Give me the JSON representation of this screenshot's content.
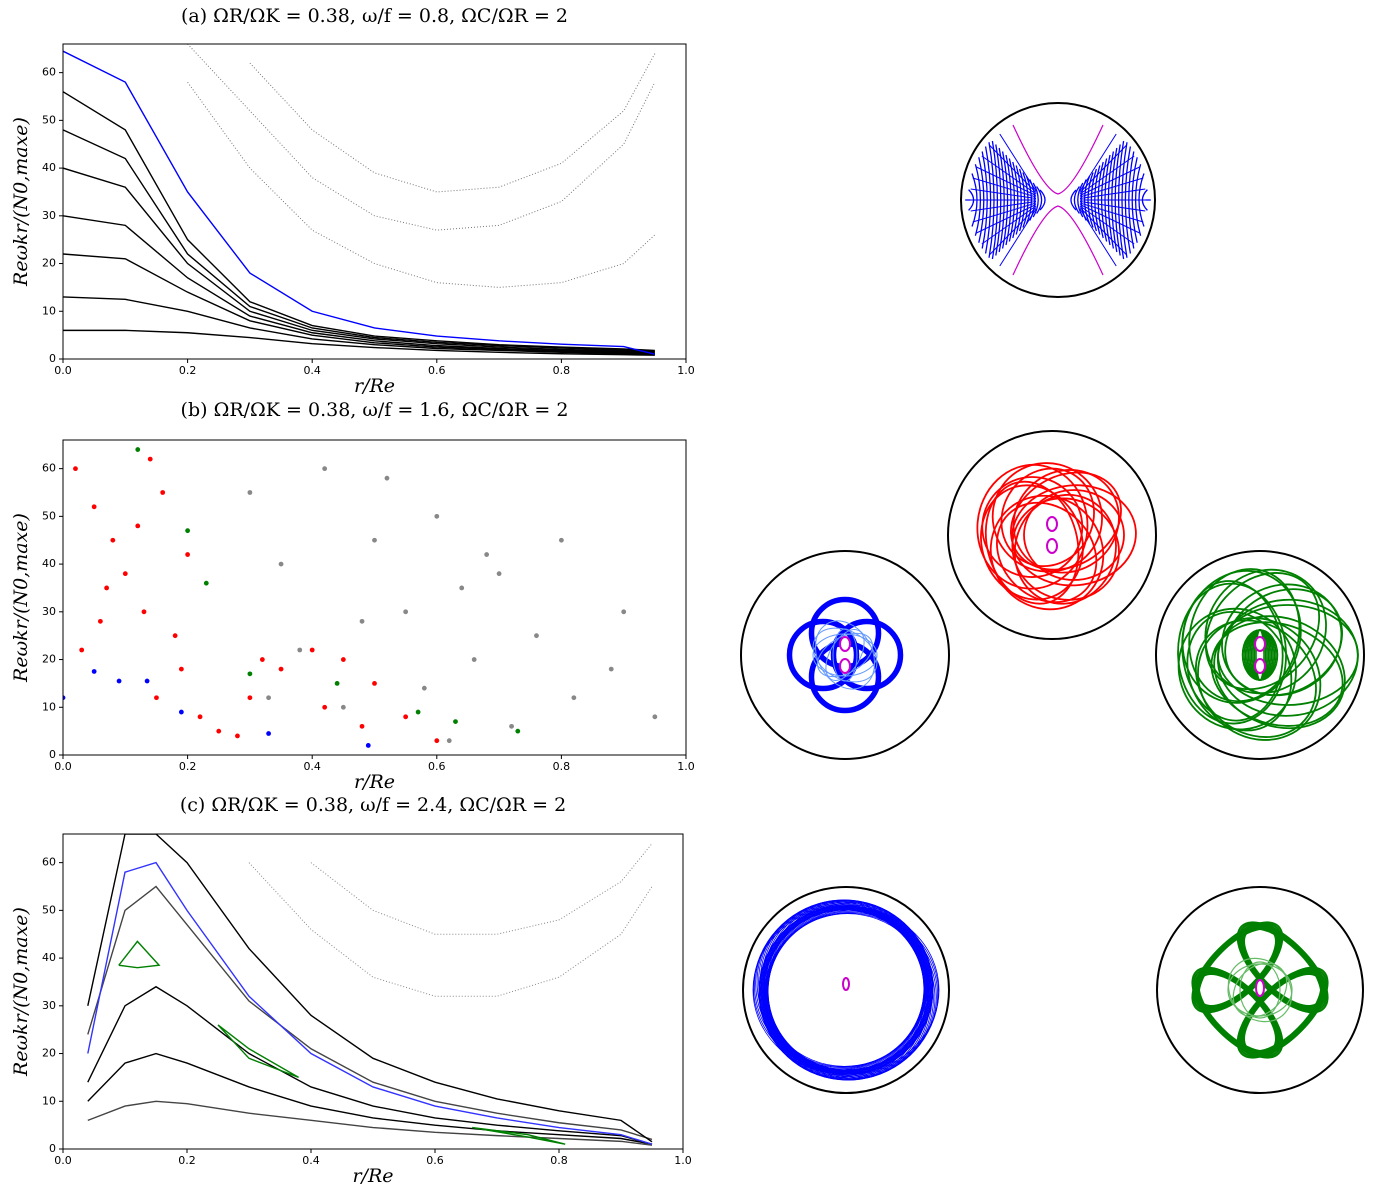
{
  "chart_data": [
    {
      "type": "line",
      "title": "(a)   ΩR/ΩK = 0.38,  ω/f = 0.8,  ΩC/ΩR = 2",
      "x_label": "r/Re",
      "y_label": "Reωkr/(N0,maxe)",
      "xlim": [
        0,
        1
      ],
      "ylim": [
        0,
        66
      ],
      "xticks": [
        {
          "value": 0,
          "label": "0.0"
        },
        0.2,
        0.4,
        0.6,
        0.8,
        {
          "value": 1,
          "label": "1.0"
        }
      ],
      "yticks": [
        0,
        10,
        20,
        30,
        40,
        50,
        60
      ],
      "x": [
        0,
        0.1,
        0.2,
        0.3,
        0.4,
        0.5,
        0.6,
        0.7,
        0.8,
        0.9,
        0.95
      ],
      "series": [
        {
          "color": "#000000",
          "values": [
            56,
            48,
            25,
            12,
            7,
            4.8,
            3.8,
            3.0,
            2.5,
            2.1,
            1.8
          ]
        },
        {
          "color": "#000000",
          "values": [
            48,
            42,
            22,
            11,
            6.5,
            4.5,
            3.5,
            2.8,
            2.3,
            1.9,
            1.6
          ]
        },
        {
          "color": "#000000",
          "values": [
            40,
            36,
            20,
            10,
            6,
            4.2,
            3.2,
            2.5,
            2.0,
            1.7,
            1.5
          ]
        },
        {
          "color": "#000000",
          "values": [
            30,
            28,
            17,
            9,
            5.5,
            3.8,
            2.8,
            2.2,
            1.8,
            1.5,
            1.3
          ]
        },
        {
          "color": "#000000",
          "values": [
            22,
            21,
            14,
            8,
            5,
            3.4,
            2.5,
            2,
            1.6,
            1.3,
            1.1
          ]
        },
        {
          "color": "#000000",
          "values": [
            13,
            12.5,
            10,
            6.5,
            4.2,
            3,
            2.2,
            1.8,
            1.4,
            1.1,
            1
          ]
        },
        {
          "color": "#000000",
          "values": [
            6,
            6,
            5.5,
            4.5,
            3.2,
            2.4,
            1.8,
            1.4,
            1.1,
            0.9,
            0.8
          ]
        },
        {
          "color": "#777777",
          "values": [
            null,
            null,
            66,
            52,
            38,
            30,
            27,
            28,
            33,
            45,
            58
          ]
        },
        {
          "color": "#777777",
          "values": [
            null,
            null,
            null,
            62,
            48,
            39,
            35,
            36,
            41,
            52,
            64
          ]
        },
        {
          "color": "#777777",
          "values": [
            null,
            null,
            58,
            40,
            27,
            20,
            16,
            15,
            16,
            20,
            26
          ]
        },
        {
          "color": "#0000ff",
          "values": [
            64.5,
            58,
            35,
            18,
            10,
            6.5,
            4.8,
            3.8,
            3.1,
            2.6,
            1
          ]
        }
      ]
    },
    {
      "type": "scatter",
      "title": "(b)   ΩR/ΩK = 0.38,  ω/f = 1.6,  ΩC/ΩR = 2",
      "x_label": "r/Re",
      "y_label": "Reωkr/(N0,maxe)",
      "xlim": [
        0,
        1
      ],
      "ylim": [
        0,
        66
      ],
      "xticks": [
        {
          "value": 0,
          "label": "0.0"
        },
        0.2,
        0.4,
        0.6,
        0.8,
        {
          "value": 1,
          "label": "1.0"
        }
      ],
      "yticks": [
        0,
        10,
        20,
        30,
        40,
        50,
        60
      ],
      "series": [
        {
          "color": "#888888",
          "x": [
            0.3,
            0.35,
            0.42,
            0.5,
            0.55,
            0.6,
            0.66,
            0.7,
            0.76,
            0.82,
            0.9,
            0.95,
            0.38,
            0.45,
            0.58,
            0.64,
            0.72,
            0.8,
            0.33,
            0.52,
            0.62,
            0.48,
            0.68,
            0.88
          ],
          "values": [
            55,
            40,
            60,
            45,
            30,
            50,
            20,
            38,
            25,
            12,
            30,
            8,
            22,
            10,
            14,
            35,
            6,
            45,
            12,
            58,
            3,
            28,
            42,
            18
          ]
        },
        {
          "color": "#ff0000",
          "x": [
            0.02,
            0.05,
            0.08,
            0.1,
            0.13,
            0.16,
            0.18,
            0.2,
            0.03,
            0.07,
            0.12,
            0.15,
            0.19,
            0.22,
            0.25,
            0.3,
            0.35,
            0.4,
            0.45,
            0.5,
            0.55,
            0.6,
            0.42,
            0.48,
            0.28,
            0.32,
            0.14,
            0.06
          ],
          "values": [
            60,
            52,
            45,
            38,
            30,
            55,
            25,
            42,
            22,
            35,
            48,
            12,
            18,
            8,
            5,
            12,
            18,
            22,
            20,
            15,
            8,
            3,
            10,
            6,
            4,
            20,
            62,
            28
          ]
        },
        {
          "color": "#008000",
          "x": [
            0.12,
            0.2,
            0.23,
            0.3,
            0.44,
            0.57,
            0.63,
            0.73
          ],
          "values": [
            64,
            47,
            36,
            17,
            15,
            9,
            7,
            5
          ]
        },
        {
          "color": "#0000ff",
          "x": [
            0.0,
            0.05,
            0.09,
            0.135,
            0.19,
            0.33,
            0.49
          ],
          "values": [
            12,
            17.5,
            15.5,
            15.5,
            9,
            4.5,
            2
          ]
        }
      ]
    },
    {
      "type": "line",
      "title": "(c)   ΩR/ΩK = 0.38,  ω/f = 2.4,  ΩC/ΩR = 2",
      "x_label": "r/Re",
      "y_label": "Reωkr/(N0,maxe)",
      "xlim": [
        0,
        1
      ],
      "ylim": [
        0,
        66
      ],
      "xticks": [
        {
          "value": 0,
          "label": "0.0"
        },
        0.2,
        0.4,
        0.6,
        0.8,
        {
          "value": 1,
          "label": "1.0"
        }
      ],
      "yticks": [
        0,
        10,
        20,
        30,
        40,
        50,
        60
      ],
      "x": [
        0.04,
        0.1,
        0.15,
        0.2,
        0.3,
        0.4,
        0.5,
        0.6,
        0.7,
        0.8,
        0.9,
        0.95
      ],
      "series": [
        {
          "color": "#000000",
          "values": [
            14,
            30,
            34,
            30,
            20,
            13,
            9,
            6.5,
            5,
            3.8,
            2.8,
            1
          ]
        },
        {
          "color": "#000000",
          "values": [
            10,
            18,
            20,
            18,
            13,
            9,
            6.5,
            5,
            3.8,
            3,
            2.2,
            1
          ]
        },
        {
          "color": "#444444",
          "values": [
            6,
            9,
            10,
            9.5,
            7.5,
            6,
            4.5,
            3.5,
            2.8,
            2.2,
            1.6,
            0.8
          ]
        },
        {
          "color": "#444444",
          "values": [
            24,
            50,
            55,
            47,
            31,
            21,
            14,
            10,
            7.5,
            5.5,
            4,
            2
          ]
        },
        {
          "color": "#000000",
          "values": [
            30,
            66,
            66,
            60,
            42,
            28,
            19,
            14,
            10.5,
            8,
            6,
            1.5
          ]
        },
        {
          "color": "#888888",
          "values": [
            null,
            null,
            null,
            null,
            60,
            46,
            36,
            32,
            32,
            36,
            45,
            55
          ]
        },
        {
          "color": "#888888",
          "values": [
            null,
            null,
            null,
            null,
            null,
            60,
            50,
            45,
            45,
            48,
            56,
            64
          ]
        },
        {
          "color": "#3333ff",
          "values": [
            20,
            58,
            60,
            50,
            32,
            20,
            13,
            9,
            6.5,
            4.5,
            3,
            1
          ]
        },
        {
          "color": "#008000",
          "x": [
            0.09,
            0.12,
            0.155,
            0.12,
            0.09
          ],
          "values": [
            38.5,
            43.5,
            38.5,
            38,
            38.5
          ]
        },
        {
          "color": "#008000",
          "x": [
            0.25,
            0.3,
            0.38,
            0.3,
            0.25
          ],
          "values": [
            26,
            21,
            15,
            19,
            26
          ]
        },
        {
          "color": "#008000",
          "x": [
            0.66,
            0.75,
            0.81,
            0.75,
            0.66
          ],
          "values": [
            4.5,
            3,
            1,
            2.5,
            4.5
          ]
        }
      ]
    }
  ]
}
